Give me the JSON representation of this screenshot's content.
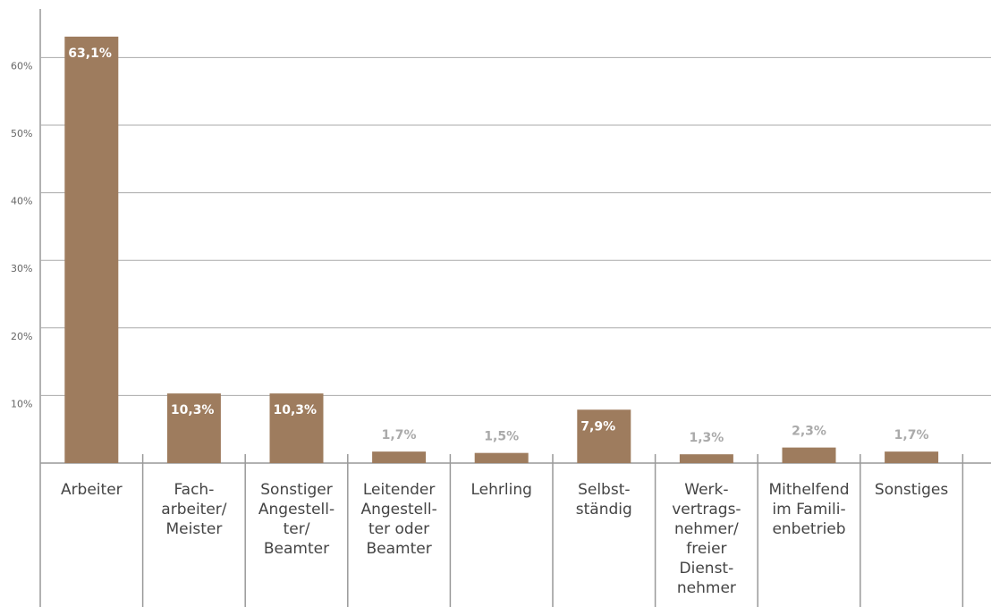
{
  "chart_data": {
    "type": "bar",
    "categories": [
      "Arbeiter",
      "Fach-\narbeiter/\nMeister",
      "Sonstiger\nAngestell-\nter/\nBeamter",
      "Leitender\nAngestell-\nter oder\nBeamter",
      "Lehrling",
      "Selbst-\nständig",
      "Werk-\nvertrags-\nnehmer/\nfreier\nDienst-\nnehmer",
      "Mithelfend\nim Famili-\nenbetrieb",
      "Sonstiges"
    ],
    "values": [
      63.1,
      10.3,
      10.3,
      1.7,
      1.5,
      7.9,
      1.3,
      2.3,
      1.7
    ],
    "value_labels": [
      "63,1%",
      "10,3%",
      "10,3%",
      "1,7%",
      "1,5%",
      "7,9%",
      "1,3%",
      "2,3%",
      "1,7%"
    ],
    "color": "#9e7c5e",
    "ylim": [
      0,
      67
    ],
    "yticks": [
      {
        "value": 10,
        "label": "10%"
      },
      {
        "value": 20,
        "label": "20%"
      },
      {
        "value": 30,
        "label": "30%"
      },
      {
        "value": 40,
        "label": "40%"
      },
      {
        "value": 50,
        "label": "50%"
      },
      {
        "value": 60,
        "label": "60%"
      }
    ],
    "grid": true
  }
}
